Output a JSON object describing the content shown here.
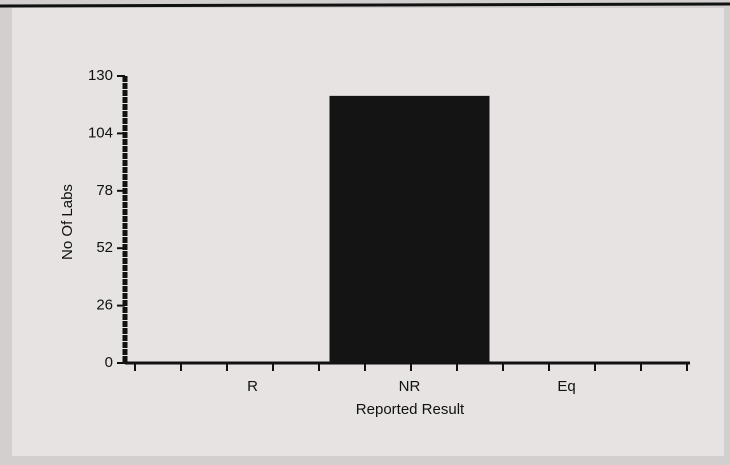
{
  "chart_data": {
    "type": "bar",
    "x_label": "Reported Result",
    "y_label": "No Of Labs",
    "categories": [
      "R",
      "NR",
      "Eq"
    ],
    "values": [
      0,
      121,
      0
    ],
    "color": "#141414",
    "ylim": [
      0,
      130
    ],
    "yticks": [
      0,
      26,
      52,
      78,
      104,
      130
    ]
  }
}
